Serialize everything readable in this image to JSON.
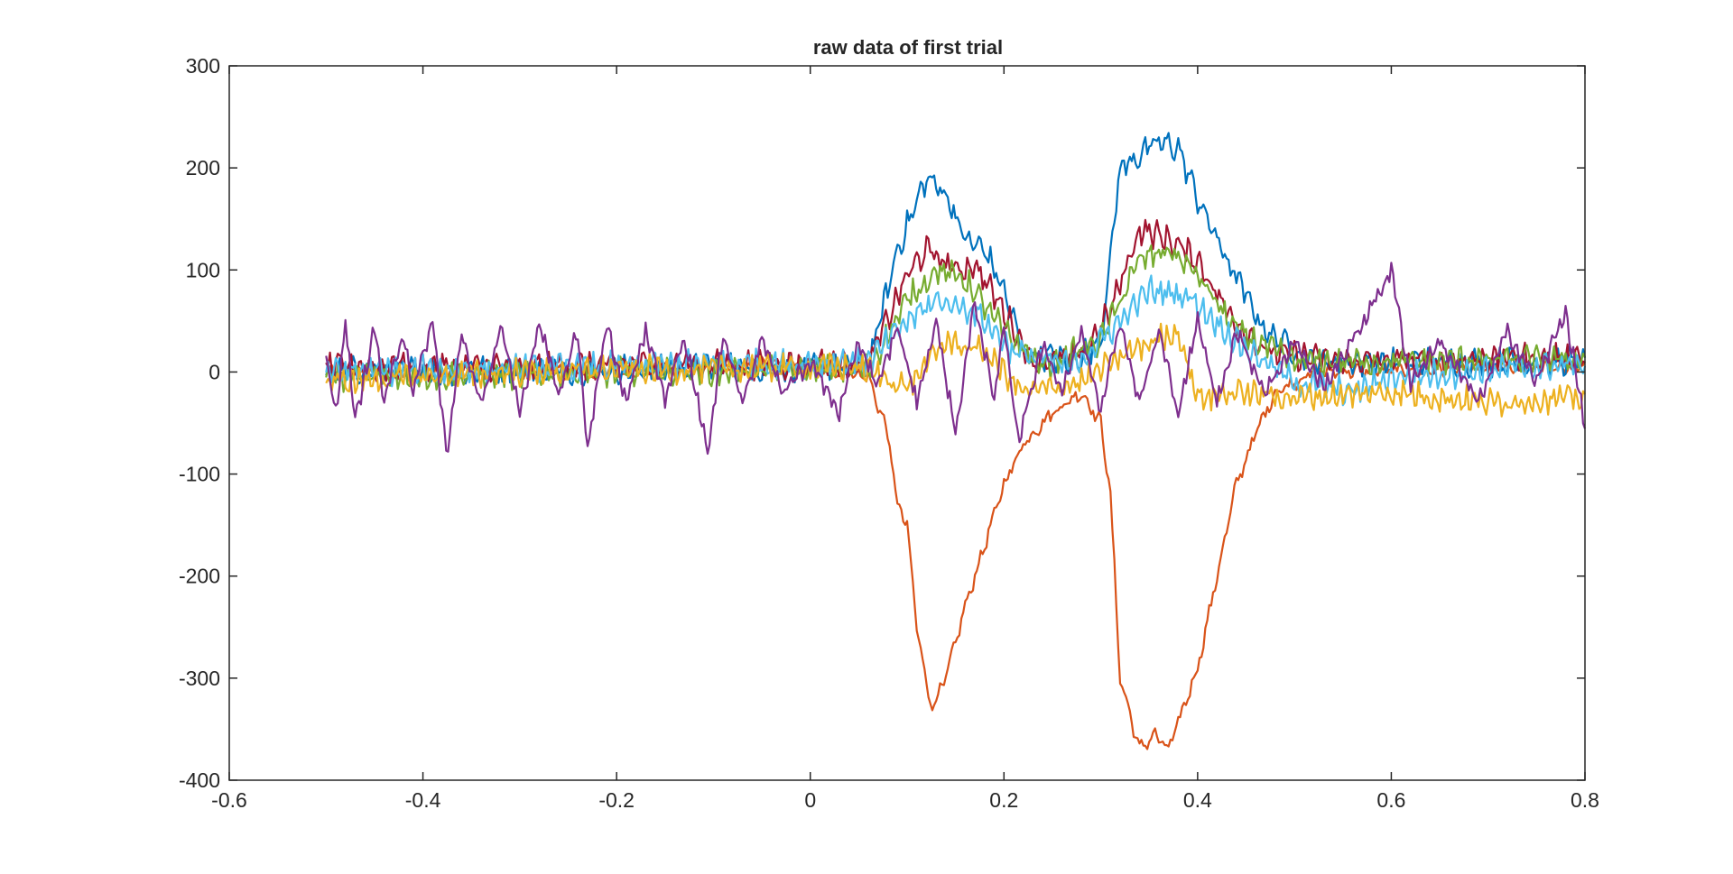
{
  "chart_data": {
    "type": "line",
    "title": "raw data of first trial",
    "xlabel": "",
    "ylabel": "",
    "xlim": [
      -0.6,
      0.8
    ],
    "ylim": [
      -400,
      300
    ],
    "xticks": [
      -0.6,
      -0.4,
      -0.2,
      0,
      0.2,
      0.4,
      0.6,
      0.8
    ],
    "xtick_labels": [
      "-0.6",
      "-0.4",
      "-0.2",
      "0",
      "0.2",
      "0.4",
      "0.6",
      "0.8"
    ],
    "yticks": [
      -400,
      -300,
      -200,
      -100,
      0,
      100,
      200,
      300
    ],
    "ytick_labels": [
      "-400",
      "-300",
      "-200",
      "-100",
      "0",
      "100",
      "200",
      "300"
    ],
    "grid": false,
    "box": true,
    "x_range": [
      -0.5,
      0.8
    ],
    "colors": [
      "#0072BD",
      "#D95319",
      "#EDB120",
      "#7E2F8E",
      "#77AC30",
      "#4DBEEE",
      "#A2142F"
    ],
    "series": [
      {
        "color": "#D95319",
        "values": [
          [
            -0.5,
            0
          ],
          [
            -0.2,
            0
          ],
          [
            0,
            8
          ],
          [
            0.06,
            -5
          ],
          [
            0.08,
            -60
          ],
          [
            0.09,
            -130
          ],
          [
            0.1,
            -150
          ],
          [
            0.11,
            -250
          ],
          [
            0.125,
            -330
          ],
          [
            0.14,
            -300
          ],
          [
            0.16,
            -230
          ],
          [
            0.18,
            -170
          ],
          [
            0.2,
            -110
          ],
          [
            0.22,
            -70
          ],
          [
            0.25,
            -40
          ],
          [
            0.28,
            -20
          ],
          [
            0.3,
            -50
          ],
          [
            0.31,
            -120
          ],
          [
            0.32,
            -300
          ],
          [
            0.34,
            -370
          ],
          [
            0.355,
            -355
          ],
          [
            0.37,
            -370
          ],
          [
            0.4,
            -290
          ],
          [
            0.42,
            -200
          ],
          [
            0.44,
            -110
          ],
          [
            0.46,
            -60
          ],
          [
            0.48,
            -20
          ],
          [
            0.52,
            0
          ],
          [
            0.8,
            5
          ]
        ]
      },
      {
        "color": "#0072BD",
        "values": [
          [
            -0.5,
            0
          ],
          [
            0.06,
            5
          ],
          [
            0.09,
            120
          ],
          [
            0.12,
            190
          ],
          [
            0.14,
            175
          ],
          [
            0.16,
            130
          ],
          [
            0.18,
            120
          ],
          [
            0.2,
            80
          ],
          [
            0.22,
            20
          ],
          [
            0.27,
            10
          ],
          [
            0.3,
            30
          ],
          [
            0.32,
            200
          ],
          [
            0.36,
            225
          ],
          [
            0.38,
            220
          ],
          [
            0.4,
            170
          ],
          [
            0.43,
            110
          ],
          [
            0.47,
            40
          ],
          [
            0.52,
            10
          ],
          [
            0.8,
            10
          ]
        ]
      },
      {
        "color": "#A2142F",
        "values": [
          [
            -0.5,
            5
          ],
          [
            0.06,
            8
          ],
          [
            0.1,
            95
          ],
          [
            0.12,
            120
          ],
          [
            0.15,
            100
          ],
          [
            0.17,
            105
          ],
          [
            0.2,
            60
          ],
          [
            0.23,
            10
          ],
          [
            0.28,
            15
          ],
          [
            0.31,
            60
          ],
          [
            0.34,
            140
          ],
          [
            0.37,
            130
          ],
          [
            0.4,
            110
          ],
          [
            0.43,
            60
          ],
          [
            0.47,
            20
          ],
          [
            0.55,
            10
          ],
          [
            0.8,
            15
          ]
        ]
      },
      {
        "color": "#77AC30",
        "values": [
          [
            -0.5,
            -5
          ],
          [
            0.06,
            3
          ],
          [
            0.1,
            70
          ],
          [
            0.13,
            100
          ],
          [
            0.16,
            90
          ],
          [
            0.2,
            40
          ],
          [
            0.24,
            5
          ],
          [
            0.3,
            30
          ],
          [
            0.34,
            110
          ],
          [
            0.37,
            120
          ],
          [
            0.4,
            95
          ],
          [
            0.44,
            40
          ],
          [
            0.5,
            10
          ],
          [
            0.8,
            12
          ]
        ]
      },
      {
        "color": "#4DBEEE",
        "values": [
          [
            -0.5,
            0
          ],
          [
            0.06,
            10
          ],
          [
            0.1,
            50
          ],
          [
            0.13,
            70
          ],
          [
            0.17,
            60
          ],
          [
            0.21,
            20
          ],
          [
            0.27,
            5
          ],
          [
            0.31,
            40
          ],
          [
            0.35,
            80
          ],
          [
            0.39,
            75
          ],
          [
            0.44,
            30
          ],
          [
            0.5,
            -10
          ],
          [
            0.56,
            -20
          ],
          [
            0.6,
            -5
          ],
          [
            0.8,
            8
          ]
        ]
      },
      {
        "color": "#EDB120",
        "values": [
          [
            -0.5,
            -10
          ],
          [
            -0.3,
            0
          ],
          [
            0.05,
            5
          ],
          [
            0.1,
            -15
          ],
          [
            0.14,
            30
          ],
          [
            0.18,
            20
          ],
          [
            0.22,
            -20
          ],
          [
            0.28,
            -10
          ],
          [
            0.33,
            20
          ],
          [
            0.38,
            40
          ],
          [
            0.4,
            -25
          ],
          [
            0.44,
            -20
          ],
          [
            0.5,
            -25
          ],
          [
            0.6,
            -20
          ],
          [
            0.7,
            -30
          ],
          [
            0.8,
            -25
          ]
        ]
      },
      {
        "color": "#7E2F8E",
        "values": [
          [
            -0.5,
            10
          ],
          [
            -0.49,
            -40
          ],
          [
            -0.48,
            50
          ],
          [
            -0.47,
            -50
          ],
          [
            -0.45,
            45
          ],
          [
            -0.44,
            -30
          ],
          [
            -0.42,
            40
          ],
          [
            -0.41,
            -20
          ],
          [
            -0.39,
            50
          ],
          [
            -0.375,
            -85
          ],
          [
            -0.36,
            40
          ],
          [
            -0.34,
            -35
          ],
          [
            -0.32,
            45
          ],
          [
            -0.3,
            -40
          ],
          [
            -0.28,
            50
          ],
          [
            -0.26,
            -20
          ],
          [
            -0.24,
            40
          ],
          [
            -0.23,
            -75
          ],
          [
            -0.21,
            45
          ],
          [
            -0.19,
            -30
          ],
          [
            -0.17,
            40
          ],
          [
            -0.15,
            -25
          ],
          [
            -0.13,
            35
          ],
          [
            -0.105,
            -80
          ],
          [
            -0.09,
            40
          ],
          [
            -0.07,
            -30
          ],
          [
            -0.05,
            35
          ],
          [
            -0.03,
            -20
          ],
          [
            0,
            10
          ],
          [
            0.03,
            -40
          ],
          [
            0.05,
            30
          ],
          [
            0.07,
            -15
          ],
          [
            0.09,
            45
          ],
          [
            0.11,
            -30
          ],
          [
            0.13,
            50
          ],
          [
            0.15,
            -60
          ],
          [
            0.17,
            70
          ],
          [
            0.19,
            -30
          ],
          [
            0.2,
            50
          ],
          [
            0.215,
            -70
          ],
          [
            0.24,
            30
          ],
          [
            0.26,
            -20
          ],
          [
            0.28,
            40
          ],
          [
            0.3,
            -35
          ],
          [
            0.32,
            50
          ],
          [
            0.34,
            -30
          ],
          [
            0.36,
            40
          ],
          [
            0.38,
            -40
          ],
          [
            0.4,
            50
          ],
          [
            0.42,
            -30
          ],
          [
            0.44,
            40
          ],
          [
            0.47,
            -20
          ],
          [
            0.5,
            30
          ],
          [
            0.53,
            -15
          ],
          [
            0.56,
            30
          ],
          [
            0.6,
            100
          ],
          [
            0.62,
            -10
          ],
          [
            0.65,
            30
          ],
          [
            0.69,
            -30
          ],
          [
            0.72,
            40
          ],
          [
            0.75,
            -10
          ],
          [
            0.78,
            60
          ],
          [
            0.8,
            -55
          ]
        ]
      }
    ]
  }
}
